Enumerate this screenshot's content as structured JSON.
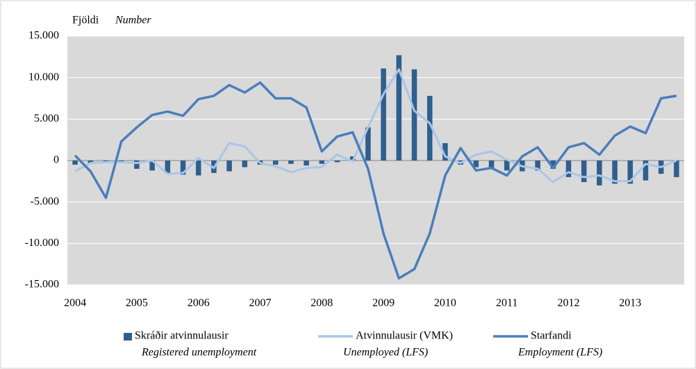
{
  "chart_data": {
    "type": "bar-line",
    "y_label": "Fjöldi",
    "y_label_en": "Number",
    "categories": [
      "2004",
      null,
      null,
      null,
      "2005",
      null,
      null,
      null,
      "2006",
      null,
      null,
      null,
      "2007",
      null,
      null,
      null,
      "2008",
      null,
      null,
      null,
      "2009",
      null,
      null,
      null,
      "2010",
      null,
      null,
      null,
      "2011",
      null,
      null,
      null,
      "2012",
      null,
      null,
      null,
      "2013",
      null,
      null,
      null
    ],
    "series": [
      {
        "name": "Skráðir atvinnulausir",
        "name_en": "Registered unemployment",
        "kind": "bar",
        "color": "#2f5f8f",
        "values": [
          -500,
          -300,
          -200,
          -200,
          -1000,
          -1200,
          -1500,
          -1700,
          -1800,
          -1500,
          -1300,
          -800,
          -500,
          -500,
          -400,
          -600,
          -400,
          -200,
          500,
          4000,
          11100,
          12700,
          11000,
          7800,
          2100,
          -500,
          -800,
          -1000,
          -1200,
          -1300,
          -1200,
          -1000,
          -2000,
          -2600,
          -3000,
          -2800,
          -2800,
          -2400,
          -1600,
          -2000
        ]
      },
      {
        "name": "Atvinnulausir (VMK)",
        "name_en": "Unemployed (LFS)",
        "kind": "line",
        "color": "#a9c6e8",
        "values": [
          -1300,
          -300,
          -200,
          -200,
          -300,
          0,
          -1600,
          -1500,
          300,
          -900,
          2100,
          1700,
          -300,
          -700,
          -1400,
          -900,
          -800,
          700,
          -100,
          4000,
          8000,
          11000,
          6000,
          4500,
          500,
          -300,
          700,
          1100,
          100,
          -700,
          -1000,
          -2600,
          -1400,
          -2000,
          -1800,
          -2500,
          -2500,
          -400,
          -800,
          0
        ]
      },
      {
        "name": "Starfandi",
        "name_en": "Employment (LFS)",
        "kind": "line",
        "color": "#4a7ebb",
        "values": [
          600,
          -1300,
          -4500,
          2300,
          4000,
          5500,
          5900,
          5400,
          7400,
          7800,
          9100,
          8200,
          9400,
          7500,
          7500,
          6400,
          1100,
          2900,
          3400,
          -1000,
          -8800,
          -14200,
          -13100,
          -8800,
          -1800,
          1500,
          -1200,
          -900,
          -1800,
          500,
          1600,
          -900,
          1600,
          2100,
          700,
          3000,
          4100,
          3300,
          7500,
          7800
        ]
      }
    ],
    "ylim": [
      -15000,
      15000
    ],
    "yticks": [
      {
        "value": -15000,
        "label": "-15.000"
      },
      {
        "value": -10000,
        "label": "-10.000"
      },
      {
        "value": -5000,
        "label": "-5.000"
      },
      0,
      {
        "value": 5000,
        "label": "5.000"
      },
      {
        "value": 10000,
        "label": "10.000"
      },
      {
        "value": 15000,
        "label": "15.000"
      }
    ],
    "grid": true
  }
}
